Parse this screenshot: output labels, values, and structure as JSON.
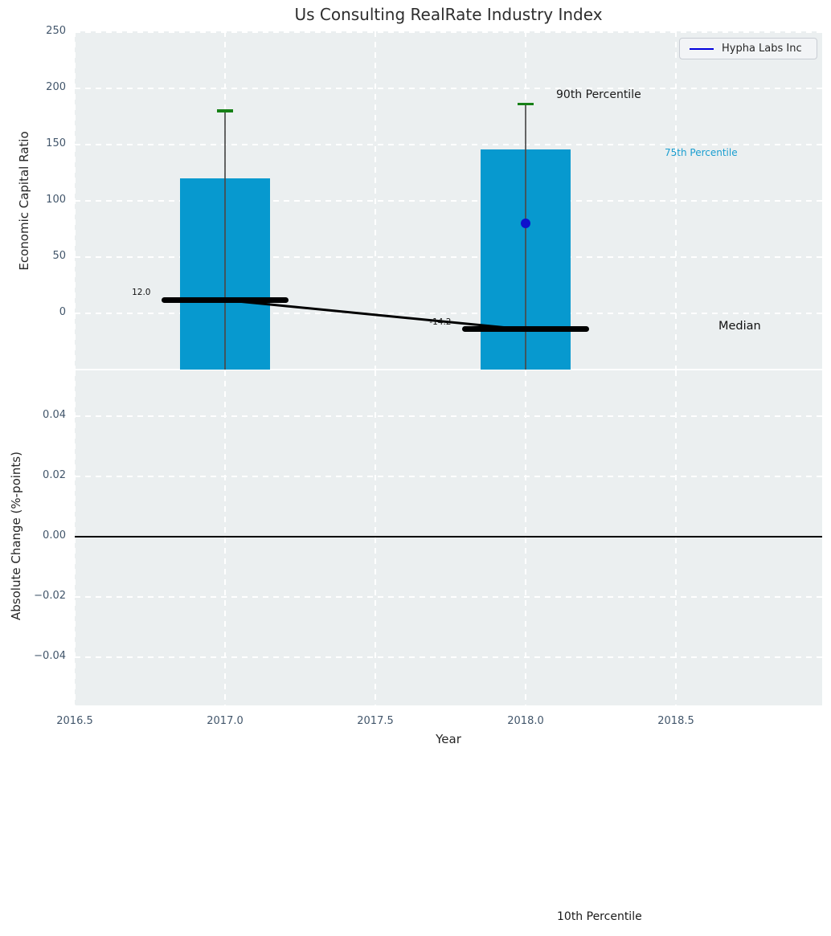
{
  "title": "Us Consulting RealRate Industry Index",
  "annotations": {
    "p90": "90th Percentile",
    "p75": "75th Percentile",
    "median": "Median",
    "p10": "10th Percentile"
  },
  "colors": {
    "bar": "#0799cf",
    "whisker": "#4a4a4a",
    "whisker_cap": "#168016",
    "median": "#000000",
    "company": "#0f11cc",
    "percentile_label": "#1a9ed0",
    "plot_background": "#ebeff0",
    "grid": "#ffffff",
    "tick_label": "#42566b"
  },
  "chart_data": [
    {
      "type": "bar",
      "title": "Us Consulting RealRate Industry Index",
      "xlabel": "Year",
      "ylabel": "Economic Capital Ratio",
      "xlim": [
        2016.5,
        2019.0
      ],
      "ylim": [
        -50,
        250
      ],
      "grid": true,
      "legend_position": "upper right",
      "yticks": [
        0,
        50,
        100,
        150,
        200,
        250
      ],
      "xticks": [
        {
          "label": "2016.5",
          "value": 2016.5
        },
        {
          "label": "2017.0",
          "value": 2017.0
        },
        {
          "label": "2017.5",
          "value": 2017.5
        },
        {
          "label": "2018.0",
          "value": 2018.0
        },
        {
          "label": "2018.5",
          "value": 2018.5
        }
      ],
      "bars": [
        {
          "year": 2017,
          "bar_top_75th": 120,
          "whisker_90th": 180,
          "median": 12.0,
          "median_label": "12.0"
        },
        {
          "year": 2018,
          "bar_top_75th": 146,
          "whisker_90th": 186,
          "median": -14.2,
          "median_label": "-14.2"
        }
      ],
      "median_trend": [
        {
          "year": 2017,
          "value": 12.0
        },
        {
          "year": 2018,
          "value": -14.2
        }
      ],
      "company_series": {
        "name": "Hypha Labs Inc",
        "points": [
          {
            "year": 2018,
            "value": 80
          }
        ]
      },
      "bar_width_years": 0.3,
      "median_cap_width_years": 0.42
    },
    {
      "type": "line",
      "xlabel": "Year",
      "ylabel": "Absolute Change (%-points)",
      "yticks": [
        {
          "label": "0.04",
          "value": 0.04
        },
        {
          "label": "0.02",
          "value": 0.02
        },
        {
          "label": "0.00",
          "value": 0.0
        },
        {
          "label": "−0.02",
          "value": -0.02
        },
        {
          "label": "−0.04",
          "value": -0.04
        }
      ],
      "ylim": [
        -0.055,
        0.055
      ],
      "zero_line": 0.0,
      "data": []
    }
  ]
}
